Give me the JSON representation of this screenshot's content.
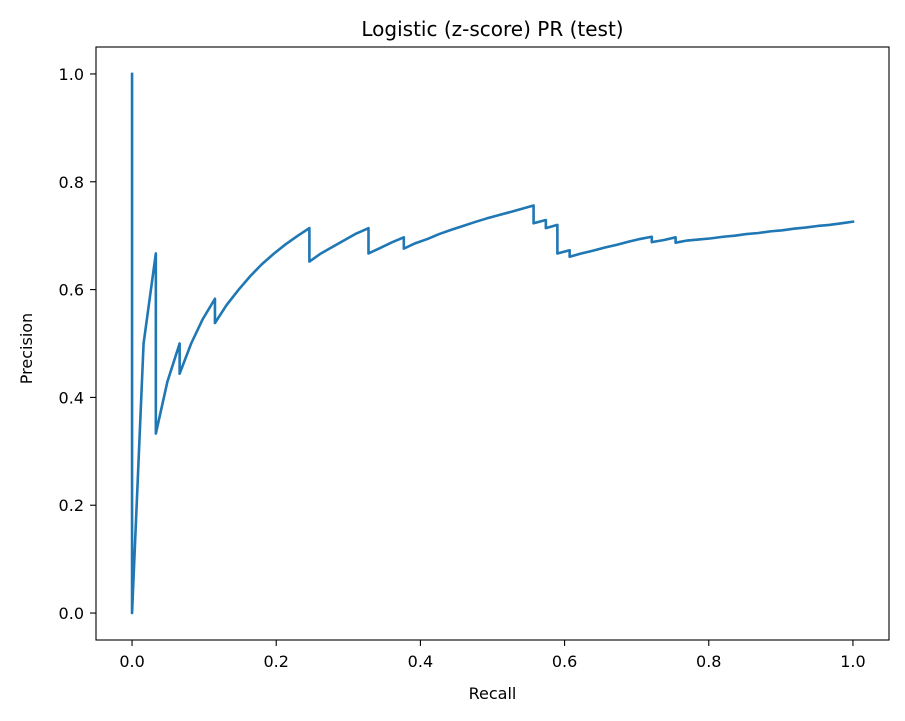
{
  "chart_data": {
    "type": "line",
    "title": "Logistic (z-score) PR (test)",
    "xlabel": "Recall",
    "ylabel": "Precision",
    "xlim": [
      -0.05,
      1.05
    ],
    "ylim": [
      -0.05,
      1.05
    ],
    "grid": false,
    "xticks": [
      0.0,
      0.2,
      0.4,
      0.6,
      0.8,
      1.0
    ],
    "xtick_labels": [
      "0.0",
      "0.2",
      "0.4",
      "0.6",
      "0.8",
      "1.0"
    ],
    "yticks": [
      0.0,
      0.2,
      0.4,
      0.6,
      0.8,
      1.0
    ],
    "ytick_labels": [
      "0.0",
      "0.2",
      "0.4",
      "0.6",
      "0.8",
      "1.0"
    ],
    "colors": {
      "line": "#1f77b4"
    },
    "series": [
      {
        "x": [
          0.0,
          0.0,
          0.016,
          0.033,
          0.033,
          0.049,
          0.066,
          0.066,
          0.082,
          0.098,
          0.115,
          0.115,
          0.131,
          0.148,
          0.164,
          0.18,
          0.197,
          0.213,
          0.23,
          0.246,
          0.246,
          0.262,
          0.279,
          0.295,
          0.311,
          0.328,
          0.328,
          0.344,
          0.361,
          0.377,
          0.377,
          0.393,
          0.41,
          0.426,
          0.443,
          0.459,
          0.475,
          0.492,
          0.508,
          0.525,
          0.541,
          0.557,
          0.557,
          0.574,
          0.574,
          0.59,
          0.59,
          0.607,
          0.607,
          0.623,
          0.639,
          0.656,
          0.672,
          0.689,
          0.705,
          0.721,
          0.721,
          0.738,
          0.754,
          0.754,
          0.77,
          0.787,
          0.803,
          0.82,
          0.836,
          0.852,
          0.869,
          0.885,
          0.902,
          0.918,
          0.934,
          0.951,
          0.967,
          0.984,
          1.0
        ],
        "y": [
          1.0,
          0.0,
          0.5,
          0.667,
          0.333,
          0.429,
          0.5,
          0.444,
          0.5,
          0.545,
          0.583,
          0.538,
          0.571,
          0.6,
          0.625,
          0.647,
          0.667,
          0.684,
          0.7,
          0.714,
          0.652,
          0.667,
          0.68,
          0.692,
          0.704,
          0.714,
          0.667,
          0.677,
          0.688,
          0.697,
          0.676,
          0.686,
          0.694,
          0.703,
          0.711,
          0.718,
          0.725,
          0.732,
          0.738,
          0.744,
          0.75,
          0.756,
          0.723,
          0.729,
          0.714,
          0.72,
          0.667,
          0.673,
          0.661,
          0.667,
          0.672,
          0.678,
          0.683,
          0.689,
          0.694,
          0.698,
          0.688,
          0.692,
          0.697,
          0.687,
          0.691,
          0.693,
          0.695,
          0.698,
          0.7,
          0.703,
          0.705,
          0.708,
          0.71,
          0.713,
          0.715,
          0.718,
          0.72,
          0.723,
          0.726
        ]
      }
    ]
  }
}
